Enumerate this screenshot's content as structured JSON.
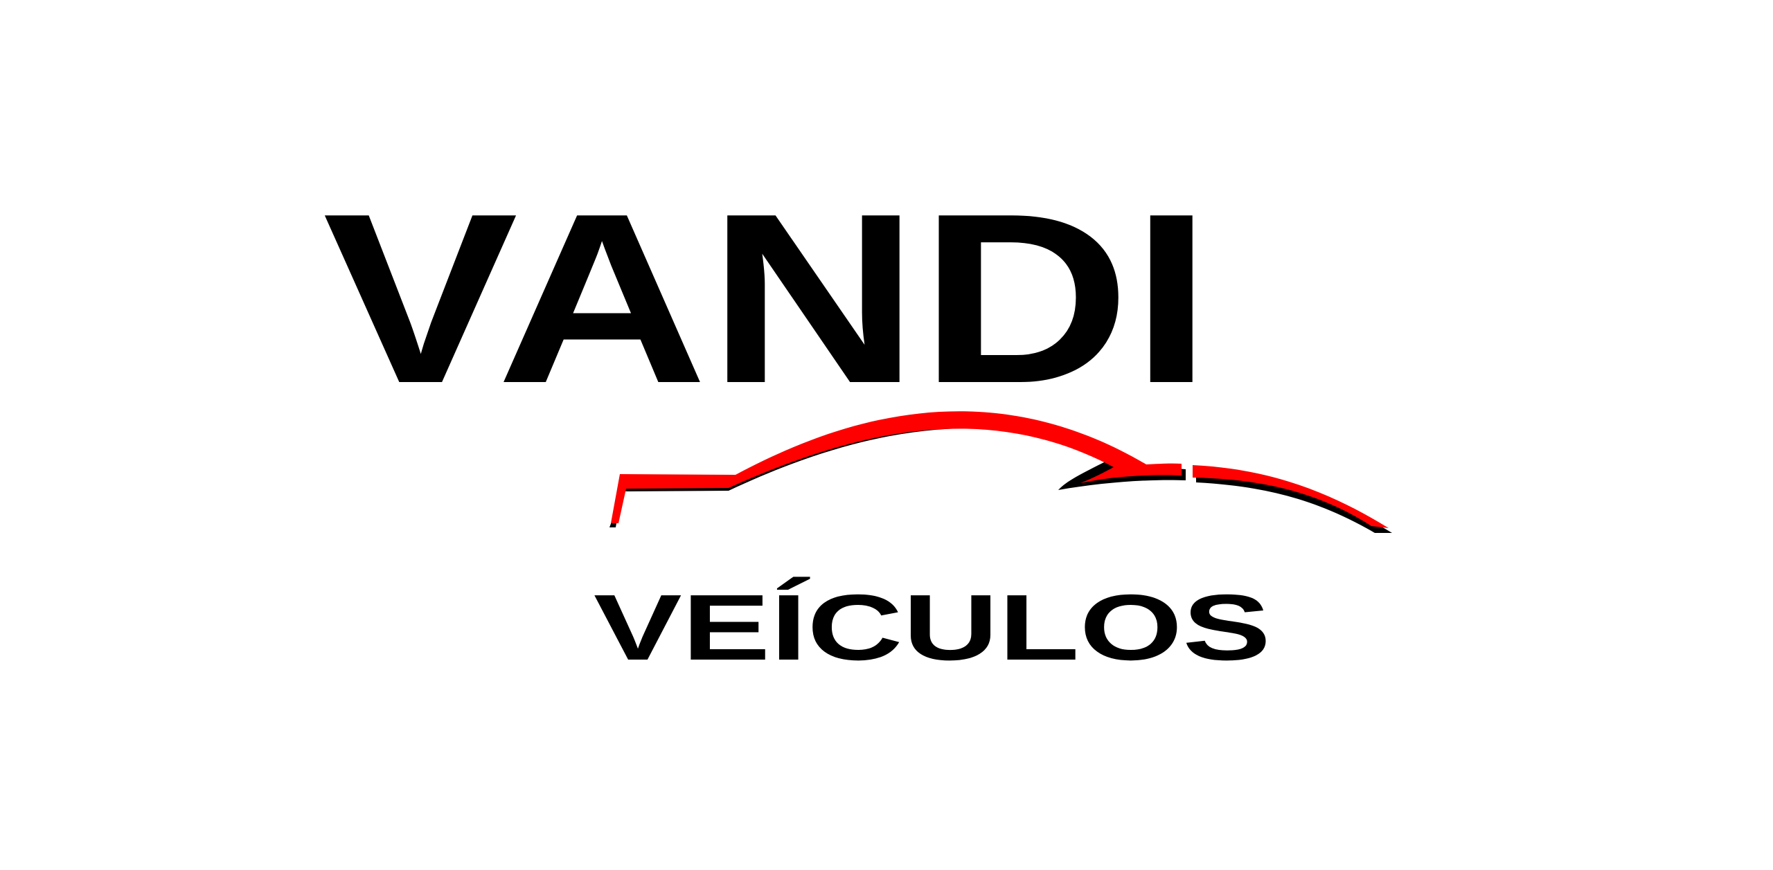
{
  "logo": {
    "primary_text": "VANDI",
    "secondary_text": "VEÍCULOS",
    "colors": {
      "background": "#ffffff",
      "text": "#000000",
      "swoosh_front": "#ff0000",
      "swoosh_shadow": "#000000"
    },
    "icon": "car-silhouette-swoosh-icon"
  }
}
